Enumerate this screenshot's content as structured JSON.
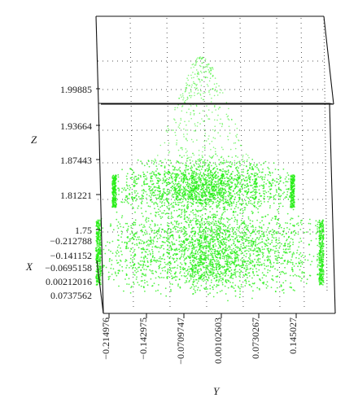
{
  "chart_data": {
    "type": "scatter",
    "projection": "3d",
    "axes": {
      "x": {
        "label": "X",
        "ticks": [
          "−0.212788",
          "−0.141152",
          "−0.0695158",
          "0.00212016",
          "0.0737562"
        ]
      },
      "y": {
        "label": "Y",
        "ticks": [
          "−0.214976",
          "−0.142975",
          "−0.0709747",
          "0.00102603",
          "0.0730267",
          "0.145027"
        ]
      },
      "z": {
        "label": "Z",
        "ticks": [
          "1.75",
          "1.81221",
          "1.87443",
          "1.93664",
          "1.99885"
        ]
      }
    },
    "ylim": [
      -0.214976,
      0.145027
    ],
    "zlim": [
      1.75,
      1.99885
    ],
    "grid": true,
    "point_color": "#22ee11",
    "structure": [
      {
        "feature": "lower-cylinder",
        "z_min": 1.75,
        "z_max": 1.78,
        "radius": 0.18
      },
      {
        "feature": "upper-disk",
        "z_min": 1.805,
        "z_max": 1.845,
        "radius_outer": 0.165,
        "radius_inner": 0.015
      },
      {
        "feature": "sparse-cone",
        "z_min": 1.845,
        "z_max": 2.02
      }
    ]
  },
  "colors": {
    "points": "#22ee11",
    "frame": "#111111",
    "grid": "#555555",
    "text": "#1a1a1a"
  }
}
